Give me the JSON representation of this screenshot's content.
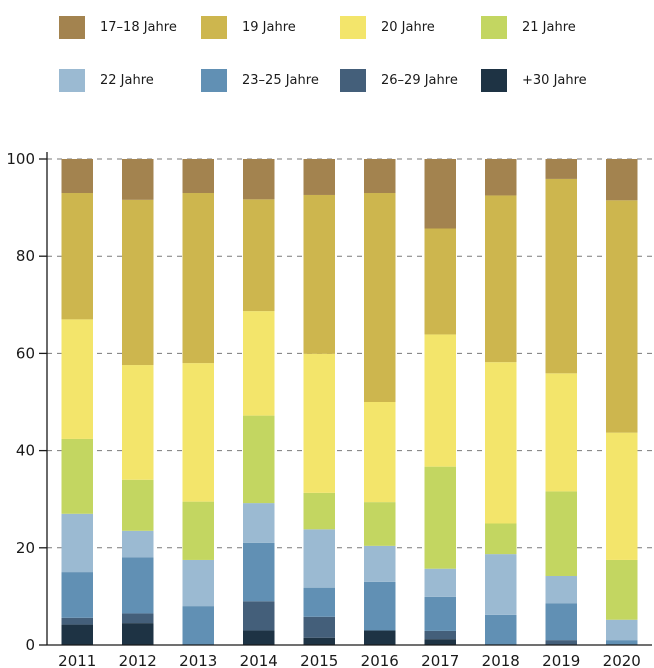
{
  "chart_data": {
    "type": "bar",
    "stacked": true,
    "categories": [
      "2011",
      "2012",
      "2013",
      "2014",
      "2015",
      "2016",
      "2017",
      "2018",
      "2019",
      "2020"
    ],
    "ylim": [
      0,
      100
    ],
    "yticks": [
      0,
      20,
      40,
      60,
      80,
      100
    ],
    "ytick_labels": [
      "0",
      "20",
      "40",
      "60",
      "80",
      "100"
    ],
    "grid": "horizontal dashed",
    "legend_position": "top",
    "series": [
      {
        "name": "+30 Jahre",
        "color": "#1e3344",
        "values": [
          4.2,
          4.5,
          0,
          3,
          1.5,
          3,
          1.2,
          0,
          0,
          0
        ]
      },
      {
        "name": "26–29 Jahre",
        "color": "#445f7a",
        "values": [
          1.4,
          2,
          0,
          6,
          4.3,
          0,
          1.7,
          0,
          1,
          0
        ]
      },
      {
        "name": "23–25 Jahre",
        "color": "#6190b4",
        "values": [
          9.4,
          11.5,
          8,
          12,
          6,
          10,
          7,
          6.2,
          7.6,
          1
        ]
      },
      {
        "name": "22 Jahre",
        "color": "#9bbad2",
        "values": [
          12,
          5.5,
          9.5,
          8.2,
          12,
          7.4,
          5.8,
          12.5,
          5.6,
          4.2
        ]
      },
      {
        "name": "21 Jahre",
        "color": "#c3d661",
        "values": [
          15.4,
          10.5,
          12,
          18,
          7.5,
          9,
          21,
          6.3,
          17.4,
          12.3
        ]
      },
      {
        "name": "20 Jahre",
        "color": "#f3e56b",
        "values": [
          24.6,
          23.6,
          28.5,
          21.5,
          28.6,
          20.6,
          27.2,
          33.2,
          24.3,
          26.2
        ]
      },
      {
        "name": "19 Jahre",
        "color": "#cdb64e",
        "values": [
          26,
          34,
          35,
          23,
          32.7,
          43,
          21.8,
          34.3,
          40,
          47.8
        ]
      },
      {
        "name": "17–18 Jahre",
        "color": "#a3834f",
        "values": [
          7,
          8.4,
          7,
          8.3,
          7.4,
          7,
          14.3,
          7.5,
          4.1,
          8.5
        ]
      }
    ],
    "legend": [
      {
        "label": "17–18 Jahre",
        "color": "#a3834f"
      },
      {
        "label": "19 Jahre",
        "color": "#cdb64e"
      },
      {
        "label": "20 Jahre",
        "color": "#f3e56b"
      },
      {
        "label": "21 Jahre",
        "color": "#c3d661"
      },
      {
        "label": "22 Jahre",
        "color": "#9bbad2"
      },
      {
        "label": "23–25 Jahre",
        "color": "#6190b4"
      },
      {
        "label": "26–29 Jahre",
        "color": "#445f7a"
      },
      {
        "label": "+30 Jahre",
        "color": "#1e3344"
      }
    ]
  }
}
